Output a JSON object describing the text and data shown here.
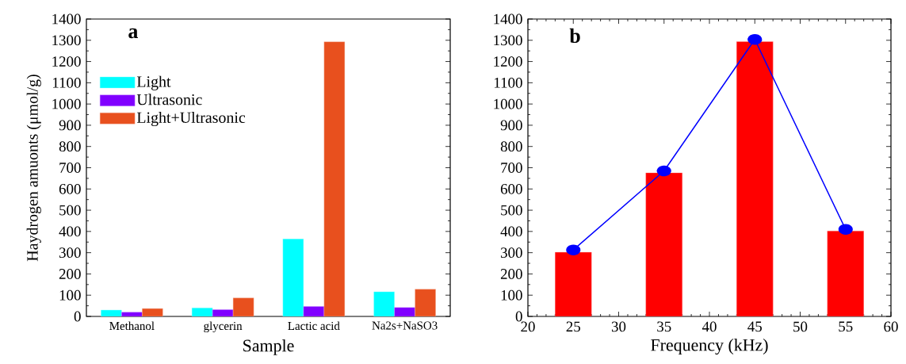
{
  "chart_data": [
    {
      "type": "bar",
      "title": "a",
      "xlabel": "Sample",
      "ylabel": "Haydrogen amuonts (μmol/g)",
      "categories": [
        "Methanol",
        "glycerin",
        "Lactic acid",
        "Na2s+NaSO3"
      ],
      "series": [
        {
          "name": "Light",
          "color": "#00ffff",
          "values": [
            30,
            40,
            365,
            116
          ]
        },
        {
          "name": "Ultrasonic",
          "color": "#8000ff",
          "values": [
            20,
            32,
            47,
            42
          ]
        },
        {
          "name": "Light+Ultrasonic",
          "color": "#e8501e",
          "values": [
            37,
            87,
            1293,
            128
          ]
        }
      ],
      "ylim": [
        0,
        1400
      ],
      "yticks": [
        0,
        100,
        200,
        300,
        400,
        500,
        600,
        700,
        800,
        900,
        1000,
        1100,
        1200,
        1300,
        1400
      ],
      "legend": "top left",
      "grid": false
    },
    {
      "type": "bar",
      "title": "b",
      "xlabel": "Frequency (kHz)",
      "x": [
        25,
        35,
        45,
        55
      ],
      "series": [
        {
          "color": "#ff0000",
          "values": [
            302,
            676,
            1294,
            402
          ]
        },
        {
          "type": "line",
          "color": "#0000ff",
          "marker": "circle",
          "values": [
            313,
            685,
            1304,
            410
          ]
        }
      ],
      "xlim": [
        20,
        60
      ],
      "xticks": [
        20,
        25,
        30,
        35,
        40,
        45,
        50,
        55,
        60
      ],
      "ylim": [
        0,
        1400
      ],
      "yticks": [
        0,
        100,
        200,
        300,
        400,
        500,
        600,
        700,
        800,
        900,
        1000,
        1100,
        1200,
        1300,
        1400
      ],
      "legend": false,
      "grid": false
    }
  ]
}
